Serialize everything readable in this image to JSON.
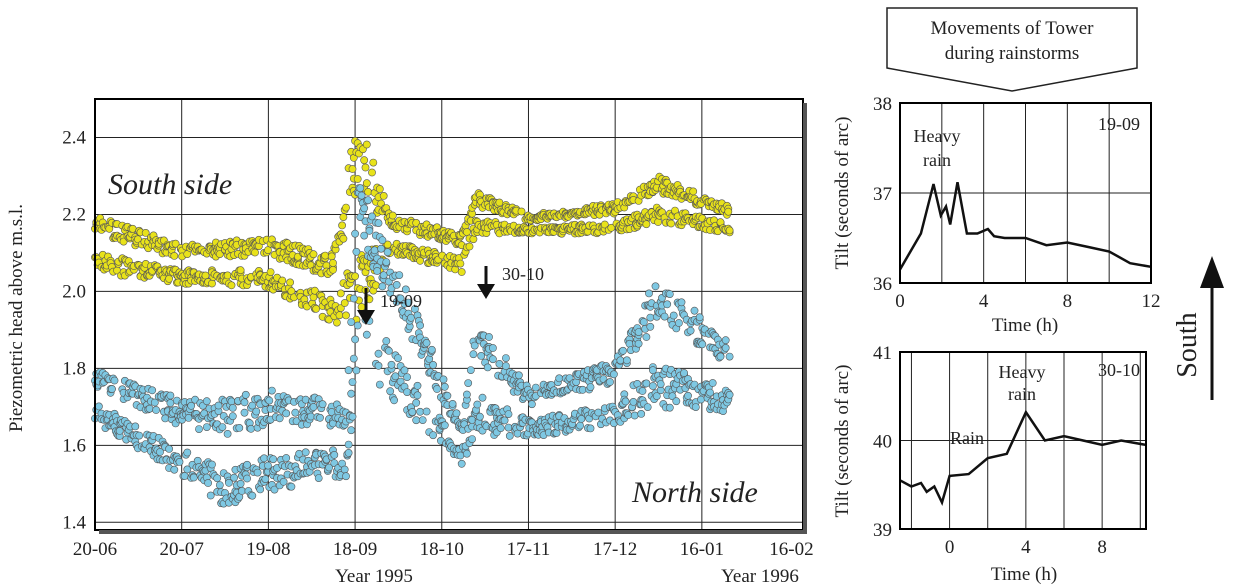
{
  "colors": {
    "south_side_points": "#e8e21a",
    "north_side_points": "#7ec8e3",
    "point_outline": "#555555",
    "grid": "#222222",
    "axis": "#000000",
    "arrow": "#111111"
  },
  "title_banner": {
    "line1": "Movements of Tower",
    "line2": "during rainstorms"
  },
  "compass": {
    "label": "South",
    "icon": "arrow-up-icon"
  },
  "chart_data": [
    {
      "type": "scatter",
      "title": "",
      "ylabel": "Piezometric head above m.s.l.",
      "xlabel_left": "Year 1995",
      "xlabel_right": "Year 1996",
      "x_tick_labels": [
        "20-06",
        "20-07",
        "19-08",
        "18-09",
        "18-10",
        "17-11",
        "17-12",
        "16-01",
        "16-02"
      ],
      "y_ticks": [
        1.4,
        1.6,
        1.8,
        2.0,
        2.2,
        2.4
      ],
      "y_tick_labels": [
        "1.4",
        "1.6",
        "1.8",
        "2.0",
        "2.2",
        "2.4"
      ],
      "ylim": [
        1.38,
        2.5
      ],
      "x_range_days_from_20_06": [
        0,
        245
      ],
      "grid": true,
      "annotations": [
        {
          "text": "South side"
        },
        {
          "text": "North side"
        },
        {
          "text": "19-09",
          "arrow_down_at": "19-09"
        },
        {
          "text": "30-10",
          "arrow_down_at": "30-10"
        }
      ],
      "series": [
        {
          "name": "South side",
          "color": "#e8e21a",
          "trend": [
            {
              "x": "20-06",
              "y": [
                2.05,
                2.2
              ]
            },
            {
              "x": "20-07",
              "y": [
                2.02,
                2.12
              ]
            },
            {
              "x": "19-08",
              "y": [
                2.01,
                2.14
              ]
            },
            {
              "x": "10-09",
              "y": [
                1.92,
                2.1
              ]
            },
            {
              "x": "19-09",
              "y": [
                1.9,
                2.46
              ]
            },
            {
              "x": "30-09",
              "y": [
                2.1,
                2.2
              ]
            },
            {
              "x": "25-10",
              "y": [
                2.05,
                2.15
              ]
            },
            {
              "x": "30-10",
              "y": [
                2.15,
                2.26
              ]
            },
            {
              "x": "17-11",
              "y": [
                2.15,
                2.2
              ]
            },
            {
              "x": "17-12",
              "y": [
                2.15,
                2.23
              ]
            },
            {
              "x": "01-01",
              "y": [
                2.18,
                2.3
              ]
            },
            {
              "x": "26-01",
              "y": [
                2.15,
                2.22
              ]
            }
          ]
        },
        {
          "name": "North side",
          "color": "#7ec8e3",
          "trend": [
            {
              "x": "20-06",
              "y": [
                1.66,
                1.8
              ]
            },
            {
              "x": "20-07",
              "y": [
                1.52,
                1.72
              ]
            },
            {
              "x": "05-08",
              "y": [
                1.43,
                1.72
              ]
            },
            {
              "x": "19-08",
              "y": [
                1.48,
                1.75
              ]
            },
            {
              "x": "15-09",
              "y": [
                1.52,
                1.72
              ]
            },
            {
              "x": "19-09",
              "y": [
                1.8,
                2.31
              ]
            },
            {
              "x": "25-10",
              "y": [
                1.55,
                1.66
              ]
            },
            {
              "x": "30-10",
              "y": [
                1.63,
                1.93
              ]
            },
            {
              "x": "17-11",
              "y": [
                1.62,
                1.75
              ]
            },
            {
              "x": "17-12",
              "y": [
                1.65,
                1.82
              ]
            },
            {
              "x": "01-01",
              "y": [
                1.7,
                2.05
              ]
            },
            {
              "x": "26-01",
              "y": [
                1.68,
                1.86
              ]
            }
          ]
        }
      ]
    },
    {
      "type": "line",
      "title": "",
      "tag": "19-09",
      "xlabel": "Time (h)",
      "ylabel": "Tilt (seconds of arc)",
      "x_ticks": [
        0,
        4,
        8,
        12
      ],
      "y_ticks": [
        36,
        37,
        38
      ],
      "xlim": [
        0,
        12
      ],
      "ylim": [
        36,
        38
      ],
      "grid": true,
      "annotations": [
        {
          "text_line1": "Heavy",
          "text_line2": "rain",
          "x": 2,
          "y": 37.1
        }
      ],
      "x": [
        0,
        1,
        1.6,
        1.95,
        2.2,
        2.4,
        2.75,
        3.2,
        3.7,
        4.2,
        4.5,
        5,
        6,
        7,
        8,
        9,
        10,
        11,
        12
      ],
      "y": [
        36.15,
        36.55,
        37.1,
        36.75,
        36.85,
        36.65,
        37.12,
        36.55,
        36.55,
        36.6,
        36.52,
        36.5,
        36.5,
        36.42,
        36.45,
        36.4,
        36.35,
        36.22,
        36.18
      ]
    },
    {
      "type": "line",
      "title": "",
      "tag": "30-10",
      "xlabel": "Time (h)",
      "ylabel": "Tilt (seconds of arc)",
      "x_ticks": [
        0,
        4,
        8
      ],
      "y_ticks": [
        39,
        40,
        41
      ],
      "xlim": [
        -2.6,
        10.3
      ],
      "ylim": [
        39,
        41
      ],
      "grid": true,
      "annotations": [
        {
          "text": "Rain",
          "x": 1.0,
          "y": 40.0
        },
        {
          "text_line1": "Heavy",
          "text_line2": "rain",
          "x": 4.0,
          "y": 40.32
        }
      ],
      "x": [
        -2.6,
        -2,
        -1.5,
        -1.2,
        -0.8,
        -0.4,
        0,
        1,
        2,
        3,
        4,
        5,
        6,
        7,
        8,
        9,
        10.3
      ],
      "y": [
        39.55,
        39.48,
        39.52,
        39.42,
        39.48,
        39.3,
        39.6,
        39.62,
        39.8,
        39.85,
        40.32,
        40.0,
        40.05,
        40.0,
        39.95,
        40.0,
        39.95
      ]
    }
  ]
}
